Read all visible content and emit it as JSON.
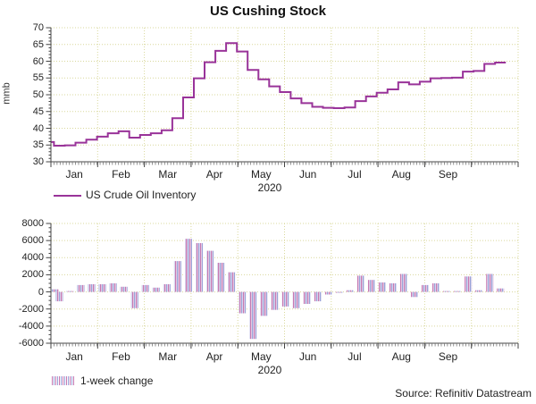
{
  "title": "US Cushing Stock",
  "year_label": "2020",
  "source": "Source: Refinitiv Datastream",
  "months": [
    "Jan",
    "Feb",
    "Mar",
    "Apr",
    "May",
    "Jun",
    "Jul",
    "Aug",
    "Sep"
  ],
  "colors": {
    "line": "#993399",
    "bar_stripe_pink": "#c678b2",
    "bar_stripe_blue": "#9aa2d8",
    "bar_stripe_bg": "#f2edf8",
    "grid": "#d9d89c",
    "axis": "#444444",
    "text": "#222222"
  },
  "chart_data": [
    {
      "type": "line",
      "panel": "top",
      "title": "US Cushing Stock",
      "ylabel": "mmb",
      "ylim": [
        30,
        70
      ],
      "y_tick_step": 5,
      "y_minor_step": 1,
      "grid": true,
      "legend": "US Crude Oil Inventory",
      "x_unit": "weekly, Jan-Oct 2020",
      "values": [
        35.9,
        34.8,
        34.9,
        35.7,
        36.6,
        37.5,
        38.5,
        39.1,
        37.2,
        38.0,
        38.5,
        39.4,
        43.0,
        49.2,
        54.9,
        59.7,
        63.1,
        65.4,
        62.9,
        57.4,
        54.6,
        52.5,
        50.8,
        48.9,
        47.5,
        46.4,
        46.1,
        46.0,
        46.2,
        48.1,
        49.5,
        50.6,
        51.6,
        53.7,
        53.1,
        53.9,
        54.9,
        55.0,
        55.1,
        56.9,
        57.1,
        59.2,
        59.6
      ]
    },
    {
      "type": "bar",
      "panel": "bottom",
      "ylabel": "",
      "ylim": [
        -6000,
        8000
      ],
      "y_tick_step": 2000,
      "y_minor_step": 500,
      "grid": true,
      "legend": "1-week change",
      "x_unit": "weekly, Jan-Oct 2020",
      "values": [
        300,
        -1100,
        100,
        800,
        900,
        900,
        1000,
        600,
        -1900,
        800,
        500,
        900,
        3600,
        6200,
        5700,
        4800,
        3400,
        2300,
        -2500,
        -5500,
        -2800,
        -2100,
        -1700,
        -1900,
        -1400,
        -1100,
        -300,
        -100,
        200,
        1900,
        1400,
        1100,
        1000,
        2100,
        -600,
        800,
        1000,
        100,
        100,
        1800,
        200,
        2100,
        400
      ]
    }
  ]
}
